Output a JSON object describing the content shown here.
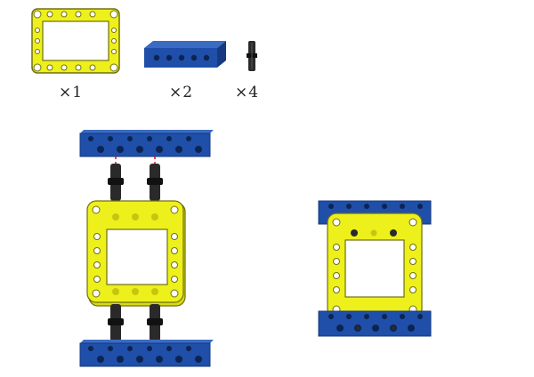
{
  "parts_list": [
    {
      "part": "yellow-frame",
      "quantity": "×1"
    },
    {
      "part": "blue-beam",
      "quantity": "×2"
    },
    {
      "part": "black-pin",
      "quantity": "×4"
    }
  ],
  "colors": {
    "frame_yellow": "#eef01c",
    "frame_outline": "#8a8a10",
    "beam_blue": "#1f4fa8",
    "beam_dark": "#163a80",
    "pin_black": "#2a2a2a",
    "guide_red": "#e02020"
  },
  "steps": [
    "explode",
    "assembled"
  ]
}
